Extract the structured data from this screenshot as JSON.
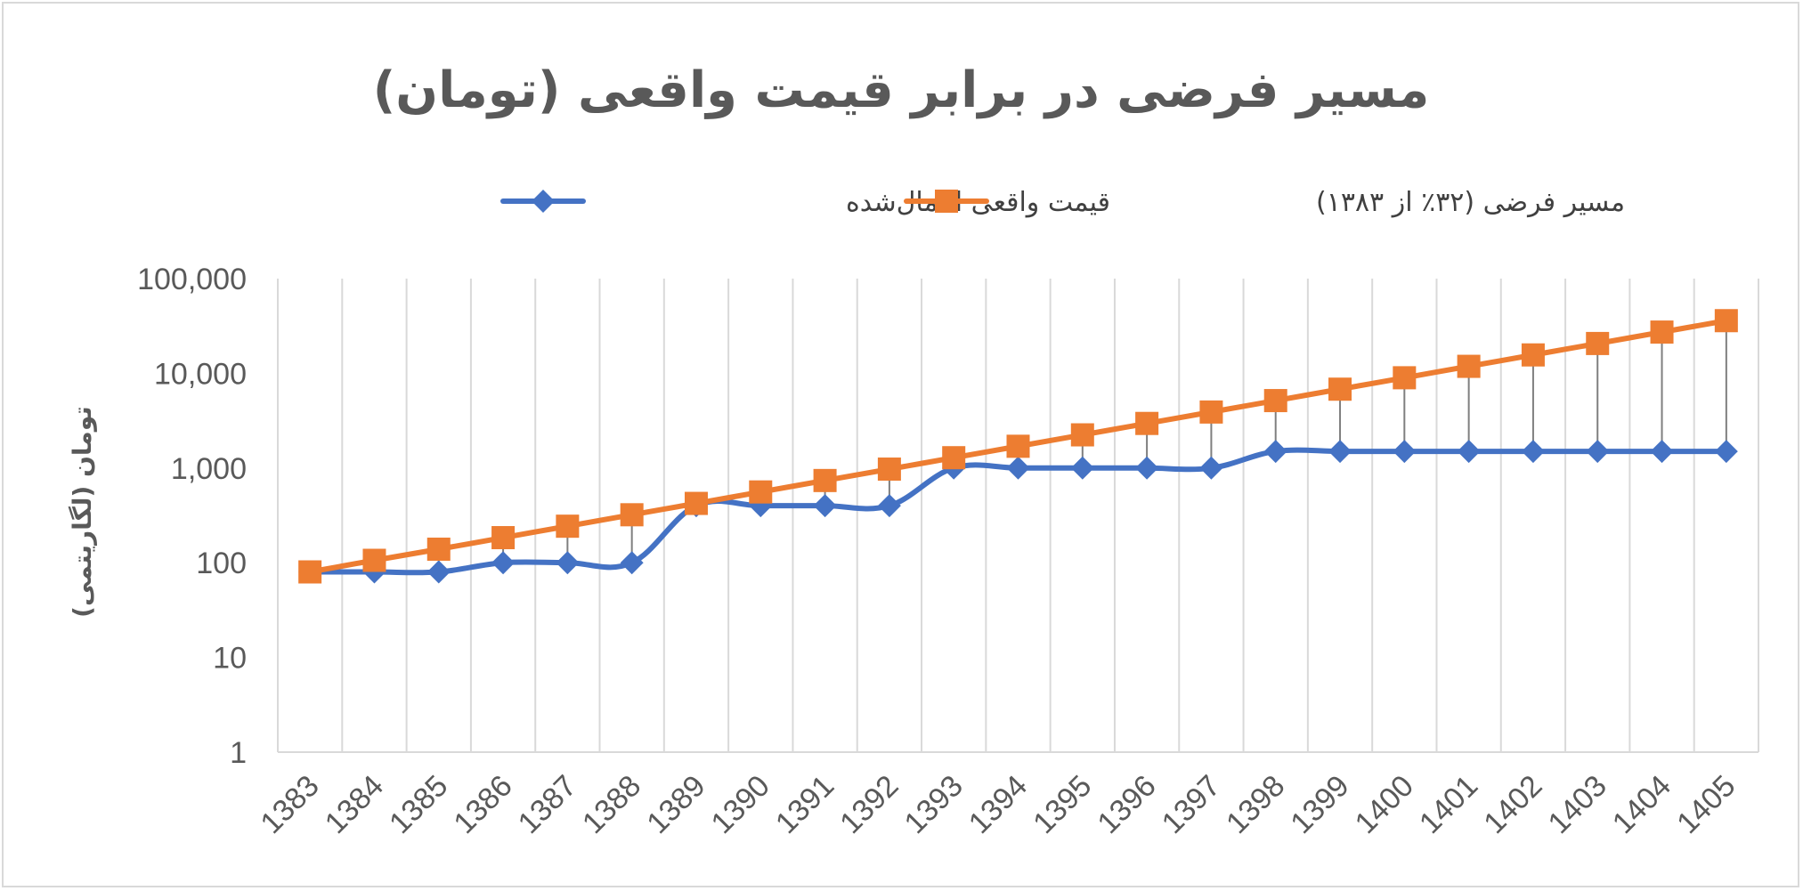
{
  "chart_data": {
    "type": "line",
    "title": "مسیر فرضی در برابر قیمت واقعی (تومان)",
    "xlabel": "",
    "ylabel": "تومان (لگاریتمی)",
    "y_scale": "log",
    "ylim": [
      1,
      100000
    ],
    "y_ticks": [
      "1",
      "10",
      "100",
      "1,000",
      "10,000",
      "100,000"
    ],
    "grid": "vertical",
    "legend_position": "top",
    "categories": [
      "1383",
      "1384",
      "1385",
      "1386",
      "1387",
      "1388",
      "1389",
      "1390",
      "1391",
      "1392",
      "1393",
      "1394",
      "1395",
      "1396",
      "1397",
      "1398",
      "1399",
      "1400",
      "1401",
      "1402",
      "1403",
      "1404",
      "1405"
    ],
    "series": [
      {
        "name": "قیمت واقعی اعمال‌شده",
        "color": "#4472c4",
        "marker": "diamond",
        "values": [
          80,
          80,
          80,
          100,
          100,
          100,
          400,
          400,
          400,
          400,
          1000,
          1000,
          1000,
          1000,
          1000,
          1500,
          1500,
          1500,
          1500,
          1500,
          1500,
          1500,
          1500
        ]
      },
      {
        "name": "مسیر فرضی (۳۲٪ از ۱۳۸۳)",
        "color": "#ed7d31",
        "marker": "square",
        "values": [
          80,
          106,
          139,
          184,
          243,
          321,
          423,
          559,
          738,
          974,
          1285,
          1697,
          2240,
          2956,
          3902,
          5151,
          6800,
          8976,
          11848,
          15639,
          20644,
          27250,
          35970
        ]
      }
    ],
    "gap_lines": {
      "color": "#7f7f7f"
    }
  }
}
